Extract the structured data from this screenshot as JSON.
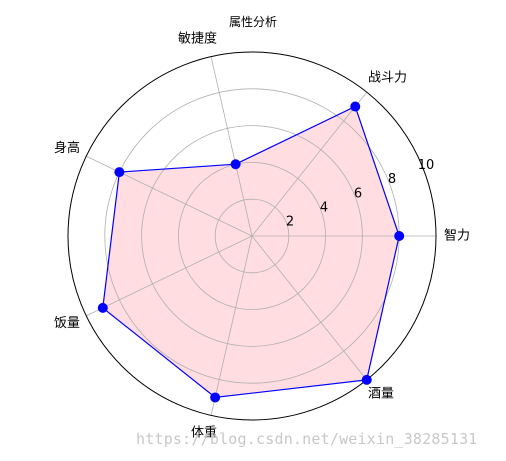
{
  "chart_data": {
    "type": "radar",
    "title": "属性分析",
    "categories": [
      "智力",
      "战斗力",
      "敏捷度",
      "身高",
      "饭量",
      "体重",
      "酒量"
    ],
    "values": [
      8,
      9,
      4,
      8,
      9,
      9,
      10
    ],
    "radial_ticks": [
      "2",
      "4",
      "6",
      "8",
      "10"
    ],
    "rlim": [
      0,
      10
    ],
    "grid": true,
    "colors": {
      "line": "#0000ff",
      "marker": "#0000ff",
      "fill": "#ffdde0",
      "grid": "#b0b0b0",
      "frame": "#000000"
    }
  },
  "watermark": "https://blog.csdn.net/weixin_38285131"
}
